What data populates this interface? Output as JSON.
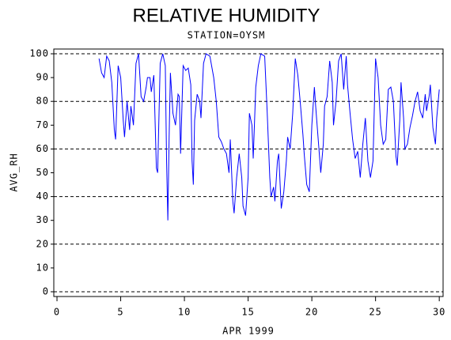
{
  "chart_data": {
    "type": "line",
    "title": "RELATIVE HUMIDITY",
    "subtitle": "STATION=OYSM",
    "y_label": "AVG_RH",
    "x_label": "APR 1999",
    "xlim": [
      -0.25,
      30.3
    ],
    "ylim": [
      -2,
      102
    ],
    "xticks": [
      0,
      5,
      10,
      15,
      20,
      25,
      30
    ],
    "yticks": [
      0,
      10,
      20,
      30,
      40,
      50,
      60,
      70,
      80,
      90,
      100
    ],
    "grid": true,
    "series": [
      {
        "color": "#0000ff",
        "x": [
          3.3,
          3.5,
          3.7,
          3.9,
          4.1,
          4.3,
          4.5,
          4.6,
          4.8,
          5.0,
          5.2,
          5.3,
          5.5,
          5.7,
          5.8,
          6.0,
          6.2,
          6.4,
          6.6,
          6.8,
          7.0,
          7.1,
          7.3,
          7.4,
          7.6,
          7.8,
          7.9,
          8.1,
          8.3,
          8.5,
          8.6,
          8.7,
          8.8,
          8.9,
          9.1,
          9.3,
          9.5,
          9.6,
          9.7,
          9.9,
          10.1,
          10.3,
          10.5,
          10.6,
          10.7,
          10.8,
          11.0,
          11.2,
          11.3,
          11.5,
          11.7,
          12.0,
          12.3,
          12.5,
          12.7,
          12.9,
          13.1,
          13.3,
          13.5,
          13.6,
          13.8,
          13.9,
          14.1,
          14.3,
          14.5,
          14.6,
          14.8,
          15.0,
          15.1,
          15.3,
          15.4,
          15.6,
          15.8,
          16.0,
          16.3,
          16.5,
          16.7,
          16.8,
          17.0,
          17.1,
          17.3,
          17.4,
          17.6,
          17.8,
          18.0,
          18.1,
          18.3,
          18.5,
          18.7,
          18.9,
          19.1,
          19.3,
          19.4,
          19.6,
          19.8,
          20.0,
          20.2,
          20.3,
          20.5,
          20.7,
          20.9,
          21.0,
          21.2,
          21.4,
          21.6,
          21.7,
          21.9,
          22.1,
          22.3,
          22.5,
          22.7,
          22.8,
          23.0,
          23.2,
          23.4,
          23.6,
          23.8,
          24.0,
          24.2,
          24.4,
          24.6,
          24.8,
          25.0,
          25.2,
          25.4,
          25.6,
          25.8,
          26.0,
          26.2,
          26.4,
          26.6,
          26.7,
          26.9,
          27.0,
          27.2,
          27.3,
          27.5,
          27.7,
          27.9,
          28.1,
          28.3,
          28.5,
          28.7,
          28.9,
          29.0,
          29.2,
          29.3,
          29.5,
          29.7,
          29.8,
          30.0
        ],
        "values": [
          98,
          92,
          90,
          99,
          97,
          88,
          68,
          64,
          95,
          90,
          72,
          65,
          80,
          68,
          78,
          70,
          96,
          100,
          82,
          80,
          86,
          90,
          90,
          84,
          91,
          52,
          50,
          96,
          100,
          95,
          55,
          30,
          65,
          92,
          75,
          70,
          83,
          82,
          58,
          95,
          93,
          94,
          87,
          55,
          45,
          72,
          83,
          80,
          73,
          96,
          100,
          99,
          90,
          80,
          65,
          63,
          60,
          58,
          50,
          64,
          38,
          33,
          48,
          58,
          48,
          36,
          32,
          48,
          75,
          70,
          56,
          86,
          95,
          100,
          99,
          75,
          48,
          40,
          44,
          38,
          55,
          58,
          35,
          42,
          55,
          65,
          60,
          75,
          98,
          91,
          79,
          66,
          58,
          45,
          42,
          70,
          86,
          78,
          64,
          50,
          62,
          78,
          82,
          97,
          88,
          70,
          80,
          97,
          100,
          85,
          99,
          87,
          75,
          64,
          56,
          59,
          48,
          62,
          73,
          55,
          48,
          55,
          98,
          90,
          70,
          62,
          64,
          85,
          86,
          80,
          57,
          53,
          72,
          88,
          73,
          60,
          62,
          69,
          74,
          80,
          84,
          76,
          73,
          83,
          76,
          82,
          87,
          69,
          62,
          73,
          85
        ]
      }
    ]
  }
}
